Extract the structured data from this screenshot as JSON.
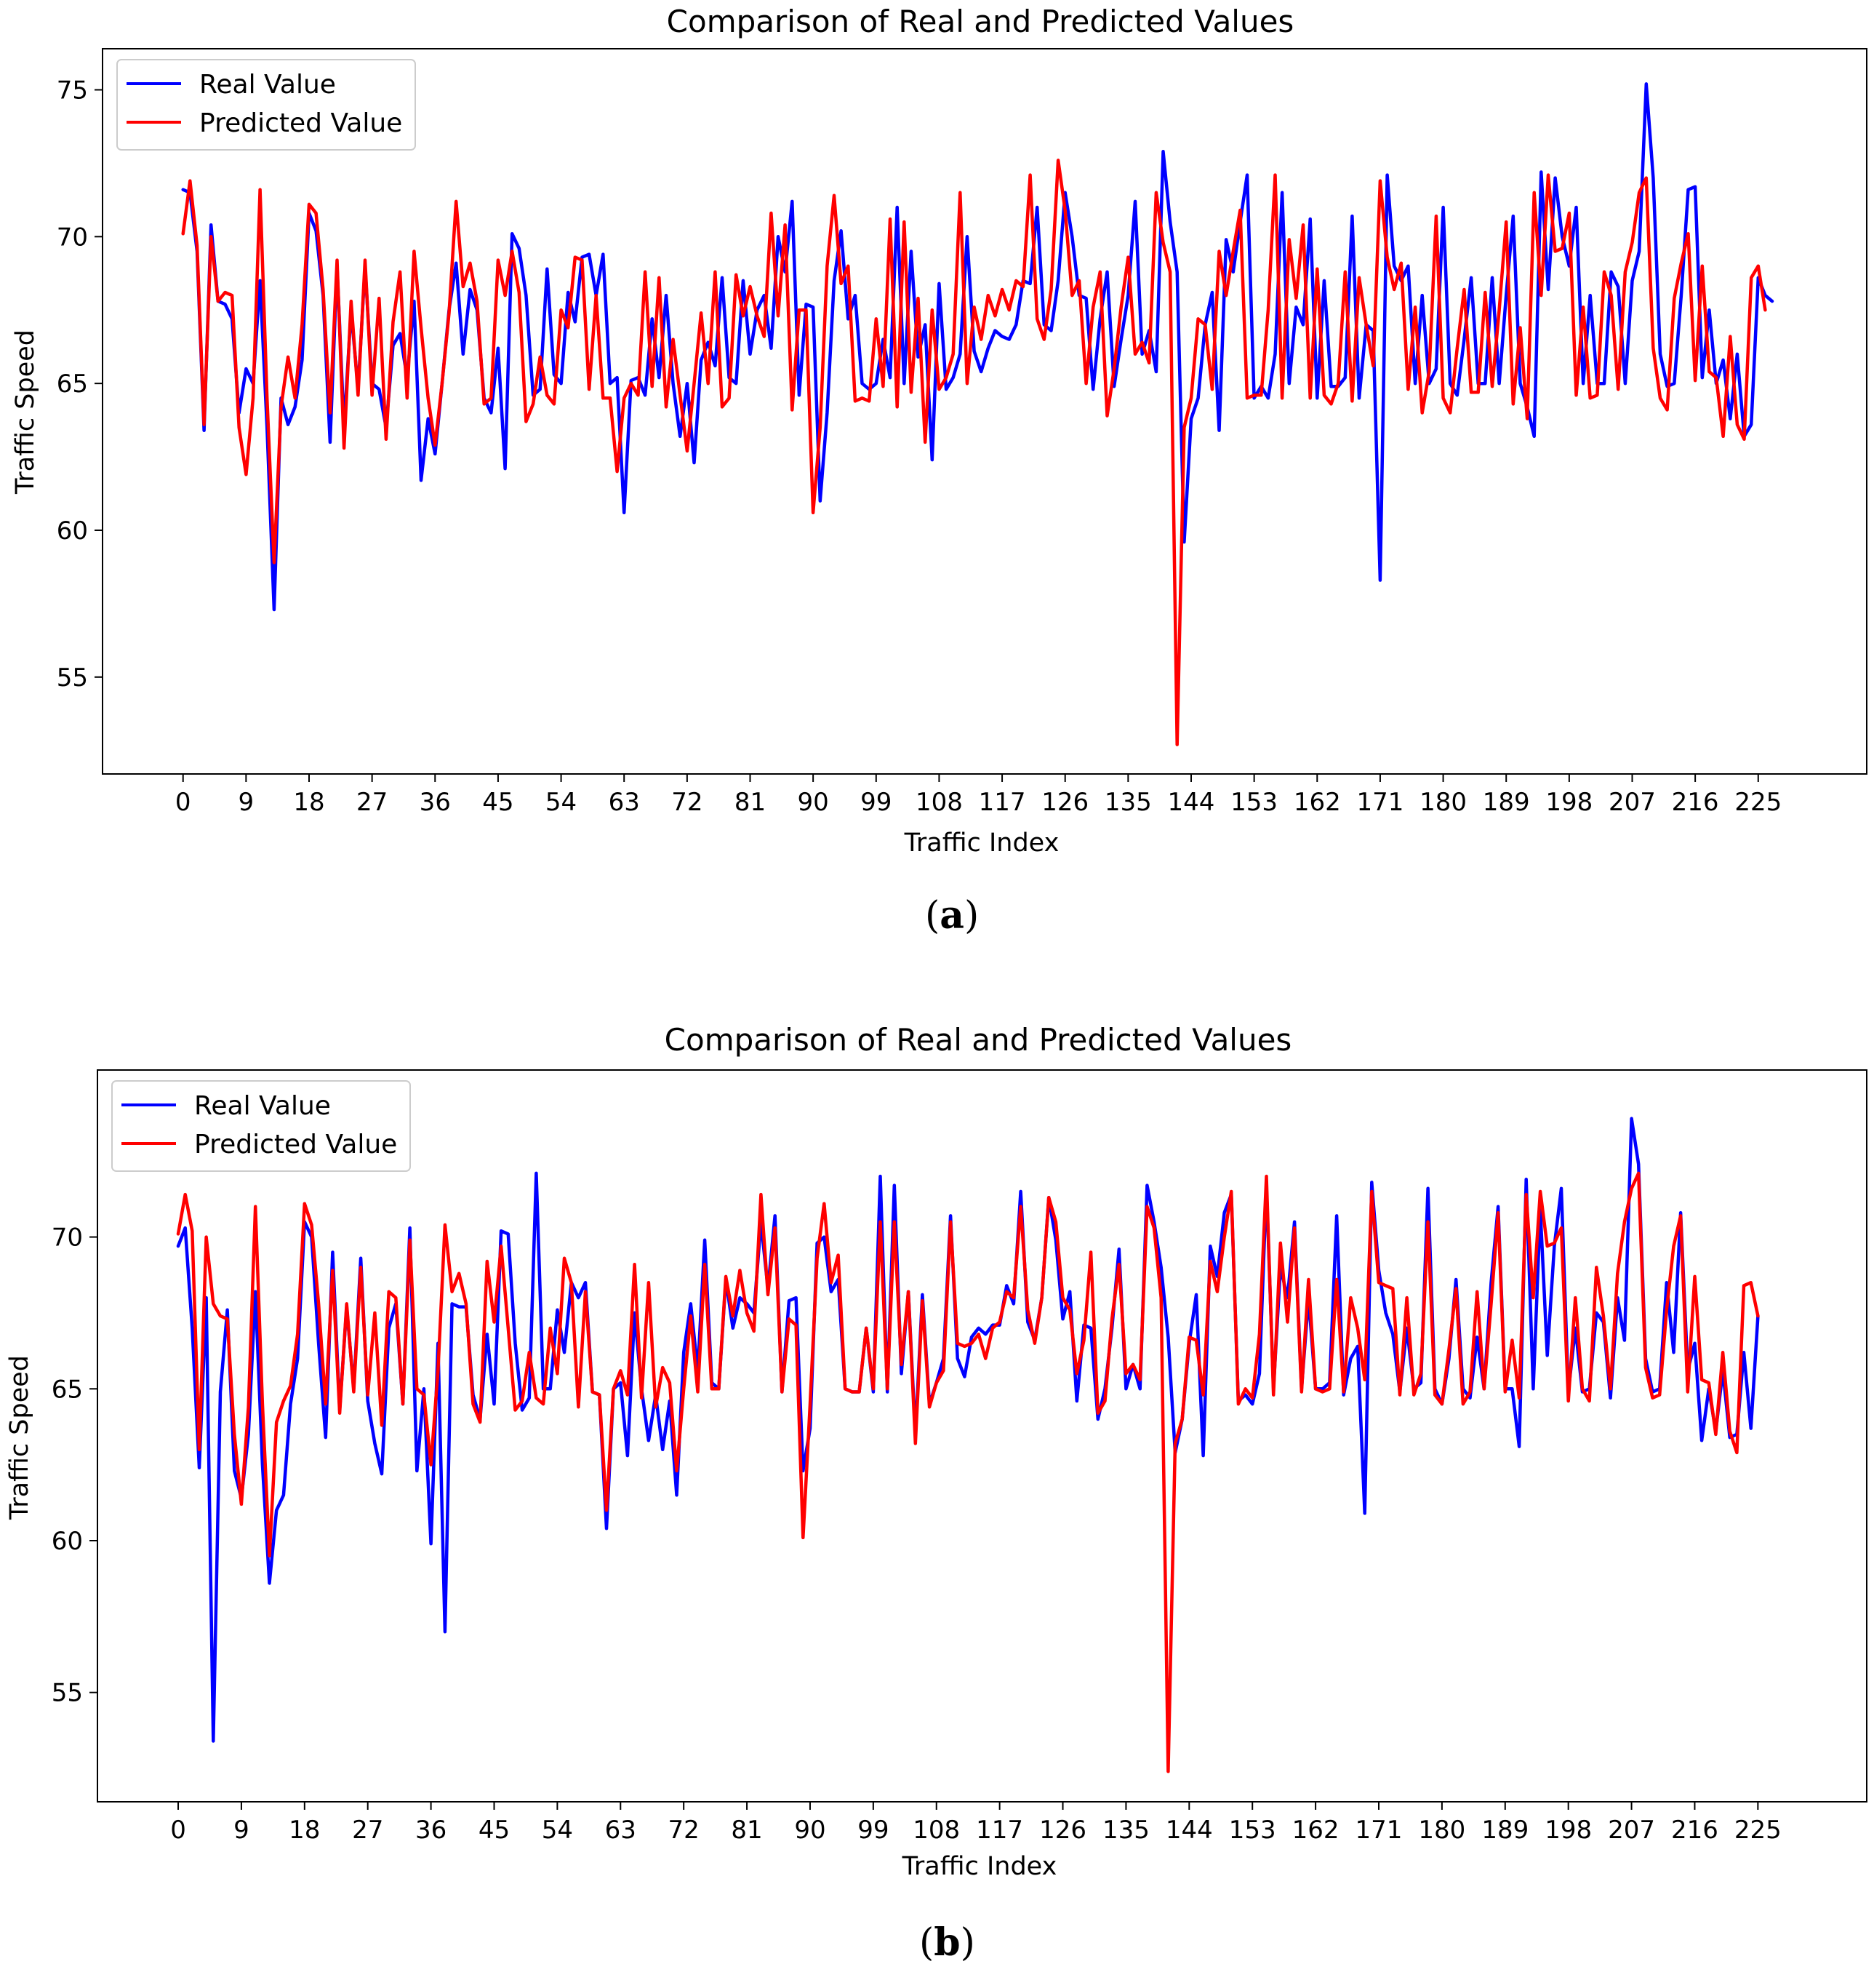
{
  "chart_data": [
    {
      "type": "line",
      "caption_letter": "a",
      "title": "Comparison of Real and Predicted Values",
      "xlabel": "Traffic Index",
      "ylabel": "Traffic Speed",
      "xlim": [
        -11.5,
        240.5
      ],
      "ylim": [
        51.7,
        76.4
      ],
      "x_ticks": [
        0,
        9,
        18,
        27,
        36,
        45,
        54,
        63,
        72,
        81,
        90,
        99,
        108,
        117,
        126,
        135,
        144,
        153,
        162,
        171,
        180,
        189,
        198,
        207,
        216,
        225
      ],
      "y_ticks": [
        55,
        60,
        65,
        70,
        75
      ],
      "legend": {
        "position": "upper-left",
        "entries": [
          "Real Value",
          "Predicted Value"
        ]
      },
      "series": [
        {
          "name": "Real Value",
          "color": "#0000ff",
          "values": [
            71.6,
            71.5,
            69.5,
            63.4,
            70.4,
            67.8,
            67.7,
            67.2,
            64.0,
            65.5,
            65.0,
            68.5,
            63.5,
            57.3,
            64.5,
            63.6,
            64.2,
            65.8,
            70.8,
            70.2,
            68.0,
            63.0,
            69.0,
            63.5,
            67.5,
            64.8,
            69.0,
            65.0,
            64.8,
            63.5,
            66.3,
            66.7,
            65.2,
            67.8,
            61.7,
            63.8,
            62.6,
            65.0,
            67.5,
            69.1,
            66.0,
            68.2,
            67.5,
            64.5,
            64.0,
            66.2,
            62.1,
            70.1,
            69.6,
            68.0,
            64.6,
            64.8,
            68.9,
            65.3,
            65.0,
            68.1,
            67.1,
            69.3,
            69.4,
            68.0,
            69.4,
            65.0,
            65.2,
            60.6,
            65.1,
            65.2,
            64.6,
            67.2,
            65.2,
            68.0,
            65.0,
            63.2,
            65.0,
            62.3,
            65.8,
            66.4,
            65.6,
            68.6,
            65.2,
            65.0,
            68.5,
            66.0,
            67.5,
            68.0,
            66.2,
            70.0,
            68.8,
            71.2,
            64.6,
            67.7,
            67.6,
            61.0,
            64.0,
            68.5,
            70.2,
            67.2,
            68.0,
            65.0,
            64.8,
            65.0,
            66.5,
            65.2,
            71.0,
            65.0,
            69.5,
            65.9,
            67.0,
            62.4,
            68.4,
            64.8,
            65.2,
            66.0,
            70.0,
            66.1,
            65.4,
            66.2,
            66.8,
            66.6,
            66.5,
            67.0,
            68.5,
            68.4,
            71.0,
            67.0,
            66.8,
            68.5,
            71.5,
            70.0,
            68.0,
            67.9,
            64.8,
            67.2,
            68.8,
            64.9,
            66.5,
            68.0,
            71.2,
            66.0,
            66.8,
            65.4,
            72.9,
            70.5,
            68.8,
            59.6,
            63.8,
            64.5,
            67.0,
            68.1,
            63.4,
            69.9,
            68.8,
            70.5,
            72.1,
            64.5,
            64.9,
            64.5,
            66.0,
            71.5,
            65.0,
            67.6,
            67.0,
            70.6,
            64.5,
            68.5,
            64.9,
            64.9,
            65.2,
            70.7,
            64.5,
            67.0,
            66.8,
            58.3,
            72.1,
            69.0,
            68.5,
            69.0,
            65.0,
            68.0,
            65.0,
            65.5,
            71.0,
            65.0,
            64.6,
            66.5,
            68.6,
            65.0,
            65.0,
            68.6,
            65.0,
            68.0,
            70.7,
            65.0,
            64.2,
            63.2,
            72.2,
            68.2,
            72.0,
            70.0,
            69.0,
            71.0,
            65.0,
            68.0,
            65.0,
            65.0,
            68.8,
            68.3,
            65.0,
            68.5,
            69.5,
            75.2,
            72.0,
            66.0,
            64.9,
            65.0,
            68.0,
            71.6,
            71.7,
            65.2,
            67.5,
            65.0,
            65.8,
            63.8,
            66.0,
            63.2,
            63.6,
            68.6,
            68.0,
            67.8
          ]
        },
        {
          "name": "Predicted Value",
          "color": "#ff0000",
          "values": [
            70.1,
            71.9,
            69.7,
            63.6,
            70.0,
            67.8,
            68.1,
            68.0,
            63.5,
            61.9,
            64.5,
            71.6,
            64.5,
            58.9,
            64.2,
            65.9,
            64.5,
            67.0,
            71.1,
            70.8,
            68.2,
            64.0,
            69.2,
            62.8,
            67.8,
            64.6,
            69.2,
            64.6,
            67.9,
            63.1,
            67.1,
            68.8,
            64.5,
            69.5,
            66.9,
            64.5,
            62.9,
            65.0,
            67.4,
            71.2,
            68.3,
            69.1,
            67.8,
            64.3,
            64.5,
            69.2,
            68.0,
            69.5,
            68.1,
            63.7,
            64.3,
            65.9,
            64.6,
            64.3,
            67.5,
            66.9,
            69.3,
            69.2,
            64.8,
            68.0,
            64.5,
            64.5,
            62.0,
            64.5,
            65.0,
            64.6,
            68.8,
            64.9,
            68.6,
            64.2,
            66.5,
            64.6,
            62.7,
            65.0,
            67.4,
            65.0,
            68.8,
            64.2,
            64.5,
            68.7,
            67.3,
            68.3,
            67.3,
            66.6,
            70.8,
            67.3,
            70.4,
            64.1,
            67.5,
            67.5,
            60.6,
            63.5,
            69.0,
            71.4,
            68.4,
            69.0,
            64.4,
            64.5,
            64.4,
            67.2,
            64.9,
            70.6,
            64.2,
            70.5,
            64.7,
            67.9,
            63.0,
            67.5,
            64.8,
            65.2,
            66.0,
            71.5,
            65.0,
            67.6,
            66.5,
            68.0,
            67.3,
            68.2,
            67.5,
            68.5,
            68.3,
            72.1,
            67.2,
            66.5,
            68.2,
            72.6,
            70.9,
            68.0,
            68.5,
            65.0,
            67.6,
            68.8,
            63.9,
            65.5,
            67.6,
            69.3,
            66.0,
            66.4,
            65.7,
            71.5,
            69.8,
            68.8,
            52.7,
            63.5,
            64.5,
            67.2,
            67.0,
            64.8,
            69.5,
            68.0,
            69.5,
            70.9,
            64.5,
            64.6,
            64.6,
            67.5,
            72.1,
            64.5,
            69.9,
            67.9,
            70.4,
            64.5,
            68.9,
            64.6,
            64.3,
            65.0,
            68.8,
            64.4,
            68.6,
            67.0,
            65.6,
            71.9,
            69.3,
            68.2,
            69.1,
            64.8,
            67.6,
            64.0,
            65.4,
            70.7,
            64.5,
            64.0,
            66.2,
            68.2,
            64.7,
            64.7,
            68.1,
            64.9,
            67.5,
            70.5,
            64.3,
            66.9,
            63.8,
            71.5,
            68.0,
            72.1,
            69.5,
            69.6,
            70.8,
            64.6,
            67.6,
            64.5,
            64.6,
            68.8,
            68.0,
            64.8,
            68.8,
            69.8,
            71.5,
            72.0,
            66.2,
            64.5,
            64.1,
            67.9,
            69.1,
            70.1,
            65.1,
            69.0,
            65.4,
            65.2,
            63.2,
            66.6,
            63.6,
            63.1,
            68.6,
            69.0,
            67.5
          ]
        }
      ]
    },
    {
      "type": "line",
      "caption_letter": "b",
      "title": "Comparison of Real and Predicted Values",
      "xlabel": "Traffic Index",
      "ylabel": "Traffic Speed",
      "xlim": [
        -11.5,
        240.5
      ],
      "ylim": [
        51.4,
        75.5
      ],
      "x_ticks": [
        0,
        9,
        18,
        27,
        36,
        45,
        54,
        63,
        72,
        81,
        90,
        99,
        108,
        117,
        126,
        135,
        144,
        153,
        162,
        171,
        180,
        189,
        198,
        207,
        216,
        225
      ],
      "y_ticks": [
        55,
        60,
        65,
        70
      ],
      "legend": {
        "position": "upper-left",
        "entries": [
          "Real Value",
          "Predicted Value"
        ]
      },
      "series": [
        {
          "name": "Real Value",
          "color": "#0000ff",
          "values": [
            69.7,
            70.3,
            67.0,
            62.4,
            68.0,
            53.4,
            64.9,
            67.6,
            62.3,
            61.4,
            63.5,
            68.2,
            62.5,
            58.6,
            61.0,
            61.5,
            64.5,
            66.0,
            70.5,
            70.0,
            66.5,
            63.4,
            69.5,
            64.3,
            67.7,
            65.0,
            69.3,
            64.6,
            63.2,
            62.2,
            67.0,
            67.8,
            64.5,
            70.3,
            62.3,
            65.0,
            59.9,
            66.5,
            57.0,
            67.8,
            67.7,
            67.7,
            64.8,
            64.0,
            66.8,
            64.5,
            70.2,
            70.1,
            66.5,
            64.3,
            64.7,
            72.1,
            65.0,
            65.0,
            67.6,
            66.2,
            68.5,
            68.0,
            68.5,
            64.9,
            64.8,
            60.4,
            65.0,
            65.2,
            62.8,
            67.5,
            65.0,
            63.3,
            64.8,
            63.0,
            64.6,
            61.5,
            66.2,
            67.8,
            65.6,
            69.9,
            65.2,
            65.0,
            68.6,
            67.0,
            68.0,
            67.8,
            67.5,
            70.5,
            68.3,
            70.7,
            64.9,
            67.9,
            68.0,
            62.3,
            63.7,
            69.8,
            70.0,
            68.2,
            68.6,
            65.0,
            64.9,
            64.9,
            67.0,
            64.9,
            72.0,
            64.9,
            71.7,
            65.5,
            68.2,
            63.5,
            68.1,
            64.5,
            65.2,
            66.0,
            70.7,
            66.0,
            65.4,
            66.7,
            67.0,
            66.8,
            67.1,
            67.1,
            68.4,
            67.8,
            71.5,
            67.2,
            66.6,
            68.0,
            71.3,
            69.9,
            67.3,
            68.2,
            64.6,
            67.1,
            67.0,
            64.0,
            65.0,
            67.0,
            69.6,
            65.0,
            65.8,
            65.0,
            71.7,
            70.5,
            69.0,
            66.7,
            62.9,
            64.0,
            66.5,
            68.1,
            62.8,
            69.7,
            68.7,
            70.8,
            71.4,
            64.6,
            64.8,
            64.5,
            65.5,
            71.7,
            65.0,
            69.0,
            68.0,
            70.5,
            65.0,
            68.0,
            65.0,
            65.0,
            65.2,
            70.7,
            64.8,
            66.0,
            66.4,
            60.9,
            71.8,
            68.9,
            67.5,
            66.8,
            64.9,
            67.0,
            65.0,
            65.2,
            71.6,
            65.0,
            64.5,
            66.0,
            68.6,
            65.0,
            64.7,
            66.7,
            65.0,
            68.5,
            71.0,
            65.0,
            65.0,
            63.1,
            71.9,
            65.0,
            70.9,
            66.1,
            69.7,
            71.6,
            64.9,
            67.0,
            64.9,
            65.0,
            67.5,
            67.2,
            64.7,
            68.0,
            66.6,
            73.9,
            72.4,
            66.0,
            64.9,
            65.0,
            68.5,
            66.2,
            70.8,
            65.6,
            66.5,
            63.3,
            65.0,
            63.6,
            65.6,
            63.4,
            63.5,
            66.2,
            63.7,
            67.4
          ]
        },
        {
          "name": "Predicted Value",
          "color": "#ff0000",
          "values": [
            70.1,
            71.4,
            70.2,
            63.0,
            70.0,
            67.8,
            67.4,
            67.3,
            63.5,
            61.2,
            64.4,
            71.0,
            64.5,
            59.5,
            63.9,
            64.6,
            65.1,
            66.8,
            71.1,
            70.4,
            67.8,
            64.5,
            68.9,
            64.2,
            67.8,
            64.9,
            69.0,
            64.8,
            67.5,
            63.8,
            68.2,
            68.0,
            64.5,
            69.9,
            65.0,
            64.8,
            62.5,
            65.6,
            70.4,
            68.2,
            68.8,
            67.8,
            64.5,
            63.9,
            69.2,
            67.2,
            69.7,
            67.0,
            64.3,
            64.6,
            66.2,
            64.7,
            64.5,
            67.0,
            65.5,
            69.3,
            68.5,
            64.4,
            68.2,
            64.9,
            64.8,
            61.0,
            65.0,
            65.6,
            64.8,
            69.1,
            64.7,
            68.5,
            64.4,
            65.7,
            65.2,
            62.3,
            65.0,
            67.4,
            64.9,
            69.1,
            65.0,
            65.0,
            68.7,
            67.4,
            68.9,
            67.5,
            66.9,
            71.4,
            68.1,
            70.3,
            64.9,
            67.3,
            67.1,
            60.1,
            64.5,
            69.3,
            71.1,
            68.5,
            69.4,
            65.0,
            64.9,
            64.9,
            67.0,
            65.0,
            70.5,
            65.0,
            70.5,
            65.8,
            68.2,
            63.2,
            67.9,
            64.4,
            65.2,
            65.6,
            70.5,
            66.5,
            66.4,
            66.5,
            66.8,
            66.0,
            67.0,
            67.2,
            68.2,
            68.0,
            71.0,
            67.6,
            66.5,
            68.0,
            71.3,
            70.5,
            68.0,
            67.6,
            65.5,
            66.6,
            69.5,
            64.2,
            64.6,
            67.3,
            69.1,
            65.5,
            65.8,
            65.3,
            71.0,
            70.3,
            68.0,
            52.4,
            63.2,
            64.0,
            66.7,
            66.6,
            64.8,
            69.2,
            68.2,
            70.0,
            71.5,
            64.5,
            65.0,
            64.7,
            66.8,
            72.0,
            64.8,
            69.8,
            67.2,
            70.3,
            64.9,
            68.6,
            65.0,
            64.9,
            65.0,
            68.6,
            64.9,
            68.0,
            67.0,
            65.3,
            71.5,
            68.5,
            68.4,
            68.3,
            64.8,
            68.0,
            64.8,
            65.5,
            70.5,
            64.8,
            64.5,
            66.3,
            68.3,
            64.5,
            64.9,
            68.2,
            65.0,
            67.8,
            70.8,
            64.9,
            66.6,
            64.7,
            71.4,
            68.0,
            71.5,
            69.7,
            69.8,
            70.3,
            64.6,
            68.0,
            65.0,
            64.6,
            69.0,
            67.4,
            65.0,
            68.8,
            70.5,
            71.6,
            72.1,
            65.7,
            64.7,
            64.8,
            67.6,
            69.7,
            70.7,
            64.9,
            68.7,
            65.3,
            65.2,
            63.5,
            66.2,
            63.6,
            62.9,
            68.4,
            68.5,
            67.4
          ]
        }
      ]
    }
  ]
}
